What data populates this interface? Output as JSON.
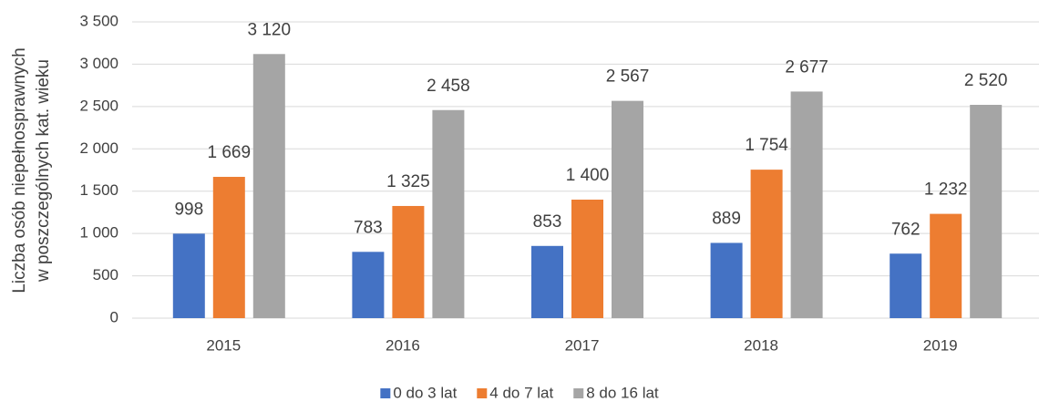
{
  "chart_data": {
    "type": "bar",
    "y_label": [
      "Liczba osób niepełnosprawnych",
      "w poszczególnych kat. wieku"
    ],
    "categories": [
      "2015",
      "2016",
      "2017",
      "2018",
      "2019"
    ],
    "series": [
      {
        "name": "0 do 3 lat",
        "color": "#4472c4",
        "values": [
          998,
          783,
          853,
          889,
          762
        ],
        "value_labels": [
          "998",
          "783",
          "853",
          "889",
          "762"
        ]
      },
      {
        "name": "4 do 7 lat",
        "color": "#ed7d31",
        "values": [
          1669,
          1325,
          1400,
          1754,
          1232
        ],
        "value_labels": [
          "1 669",
          "1 325",
          "1 400",
          "1 754",
          "1 232"
        ]
      },
      {
        "name": "8 do 16 lat",
        "color": "#a5a5a5",
        "values": [
          3120,
          2458,
          2567,
          2677,
          2520
        ],
        "value_labels": [
          "3 120",
          "2 458",
          "2 567",
          "2 677",
          "2 520"
        ]
      }
    ],
    "ylim": [
      0,
      3500
    ],
    "yticks": [
      0,
      500,
      {
        "value": 1000,
        "label": "1 000"
      },
      {
        "value": 1500,
        "label": "1 500"
      },
      {
        "value": 2000,
        "label": "2 000"
      },
      {
        "value": 2500,
        "label": "2 500"
      },
      {
        "value": 3000,
        "label": "3 000"
      },
      {
        "value": 3500,
        "label": "3 500"
      }
    ],
    "grid": true,
    "legend": "bottom"
  }
}
